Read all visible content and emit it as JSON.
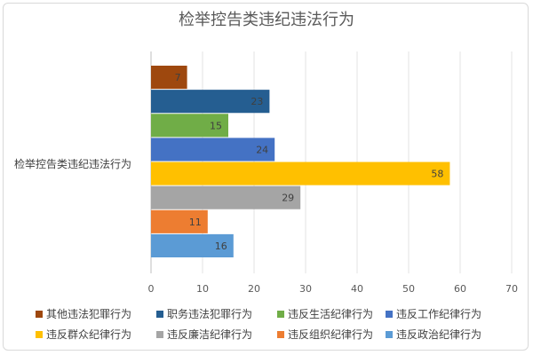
{
  "chart_data": {
    "type": "bar",
    "orientation": "horizontal",
    "title": "检举控告类违纪违法行为",
    "category": "检举控告类违纪违法行为",
    "xlim": [
      0,
      70
    ],
    "xticks": [
      0,
      10,
      20,
      30,
      40,
      50,
      60,
      70
    ],
    "grid": true,
    "legend_position": "bottom",
    "series": [
      {
        "name": "其他违法犯罪行为",
        "value": 7,
        "color": "#9e480e"
      },
      {
        "name": "职务违法犯罪行为",
        "value": 23,
        "color": "#255e91"
      },
      {
        "name": "违反生活纪律行为",
        "value": 15,
        "color": "#70ad47"
      },
      {
        "name": "违反工作纪律行为",
        "value": 24,
        "color": "#4472c4"
      },
      {
        "name": "违反群众纪律行为",
        "value": 58,
        "color": "#ffc000"
      },
      {
        "name": "违反廉洁纪律行为",
        "value": 29,
        "color": "#a5a5a5"
      },
      {
        "name": "违反组织纪律行为",
        "value": 11,
        "color": "#ed7d31"
      },
      {
        "name": "违反政治纪律行为",
        "value": 16,
        "color": "#5b9bd5"
      }
    ],
    "legend_order": [
      "其他违法犯罪行为",
      "职务违法犯罪行为",
      "违反生活纪律行为",
      "违反工作纪律行为",
      "违反群众纪律行为",
      "违反廉洁纪律行为",
      "违反组织纪律行为",
      "违反政治纪律行为"
    ]
  }
}
